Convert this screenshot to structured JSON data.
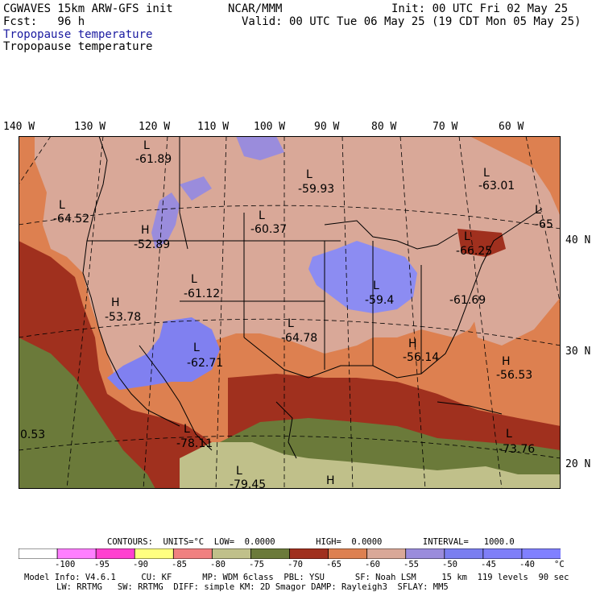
{
  "header": {
    "model": "CGWAVES 15km ARW-GFS init",
    "forecast": "Fcst:   96 h",
    "center": "NCAR/MMM",
    "init": "Init: 00 UTC Fri 02 May 25",
    "valid": "Valid: 00 UTC Tue 06 May 25 (19 CDT Mon 05 May 25)",
    "field_title_blue": "Tropopause temperature",
    "field_title_black": "Tropopause temperature"
  },
  "axes": {
    "longitudes": [
      "140 W",
      "130 W",
      "120 W",
      "110 W",
      "100 W",
      "90 W",
      "80 W",
      "70 W",
      "60 W"
    ],
    "latitudes": [
      "40 N",
      "30 N",
      "20 N"
    ]
  },
  "map_labels": [
    {
      "letter": "L",
      "value": "-61.89"
    },
    {
      "letter": "L",
      "value": "-59.93"
    },
    {
      "letter": "L",
      "value": "-63.01"
    },
    {
      "letter": "L",
      "value": "-65"
    },
    {
      "letter": "L",
      "value": "-64.52"
    },
    {
      "letter": "H",
      "value": "-52.89"
    },
    {
      "letter": "L",
      "value": "-60.37"
    },
    {
      "letter": "L",
      "value": "-66.25"
    },
    {
      "letter": "L",
      "value": "-61.12"
    },
    {
      "letter": "L",
      "value": "-59.4"
    },
    {
      "letter": "",
      "value": "-61.69"
    },
    {
      "letter": "H",
      "value": "-53.78"
    },
    {
      "letter": "L",
      "value": "-64.78"
    },
    {
      "letter": "H",
      "value": "-56.14"
    },
    {
      "letter": "L",
      "value": "-62.71"
    },
    {
      "letter": "H",
      "value": "-56.53"
    },
    {
      "letter": "",
      "value": "0.53"
    },
    {
      "letter": "L",
      "value": "-78.11"
    },
    {
      "letter": "L",
      "value": "-73.76"
    },
    {
      "letter": "L",
      "value": "-79.45"
    },
    {
      "letter": "H",
      "value": ""
    }
  ],
  "contours": {
    "text": "CONTOURS:  UNITS=°C  LOW=  0.0000        HIGH=  0.0000        INTERVAL=   1000.0"
  },
  "colorbar": {
    "colors": [
      "#ffffff",
      "#ff7fff",
      "#ff40d0",
      "#ffff80",
      "#f08080",
      "#c0c08a",
      "#6b7a3a",
      "#a0301e",
      "#dd8050",
      "#d9a898",
      "#9a8cdc",
      "#7a7ef0",
      "#7f7ff8",
      "#8080ff"
    ],
    "ticks": [
      "-100",
      "-95",
      "-90",
      "-85",
      "-80",
      "-75",
      "-70",
      "-65",
      "-60",
      "-55",
      "-50",
      "-45",
      "-40"
    ],
    "unit": "°C"
  },
  "footer": {
    "line1": "Model Info: V4.6.1     CU: KF      MP: WDM 6class  PBL: YSU      SF: Noah LSM     15 km  119 levels  90 sec",
    "line2": "LW: RRTMG   SW: RRTMG  DIFF: simple KM: 2D Smagor DAMP: Rayleigh3  SFLAY: MM5"
  }
}
